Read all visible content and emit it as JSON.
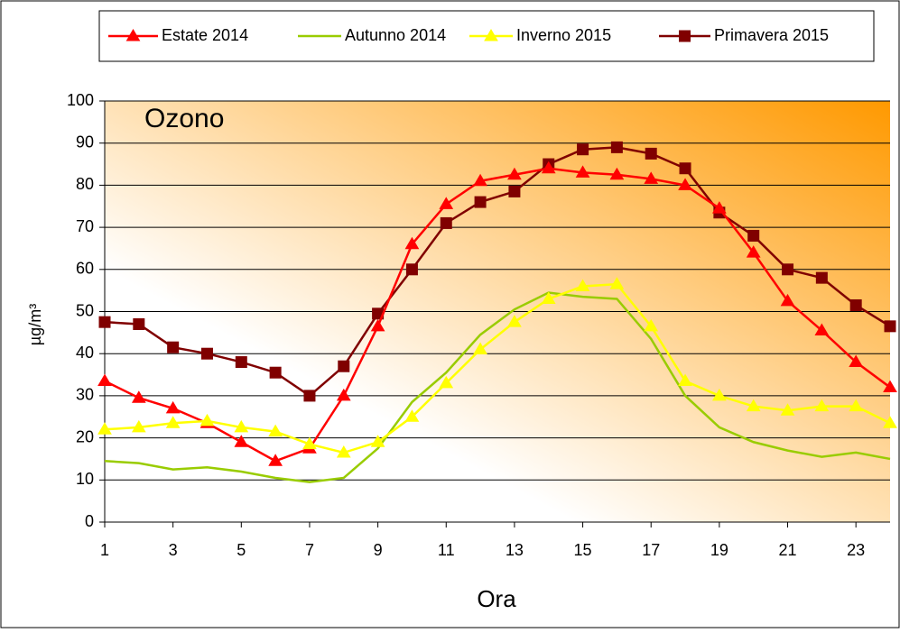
{
  "chart_data": {
    "type": "line",
    "title": "Ozono",
    "x_label": "Ora",
    "y_label": "µg/m³",
    "x": [
      1,
      2,
      3,
      4,
      5,
      6,
      7,
      8,
      9,
      10,
      11,
      12,
      13,
      14,
      15,
      16,
      17,
      18,
      19,
      20,
      21,
      22,
      23,
      24
    ],
    "xlim": [
      1,
      24
    ],
    "xticks": [
      1,
      3,
      5,
      7,
      9,
      11,
      13,
      15,
      17,
      19,
      21,
      23
    ],
    "ylim": [
      0,
      100
    ],
    "yticks": [
      0,
      10,
      20,
      30,
      40,
      50,
      60,
      70,
      80,
      90,
      100
    ],
    "grid": true,
    "series": [
      {
        "name": "Estate 2014",
        "color": "#ff0000",
        "marker": "triangle",
        "values": [
          33.5,
          29.5,
          27,
          23.5,
          19,
          14.5,
          17.5,
          30,
          46.5,
          66,
          75.5,
          81,
          82.5,
          84,
          83,
          82.5,
          81.5,
          80,
          74.5,
          64,
          52.5,
          45.5,
          38,
          32
        ]
      },
      {
        "name": "Autunno 2014",
        "color": "#99cc00",
        "marker": "none",
        "values": [
          14.5,
          14,
          12.5,
          13,
          12,
          10.5,
          9.5,
          10.5,
          17.5,
          28.5,
          35.5,
          44.5,
          50.5,
          54.5,
          53.5,
          53,
          43.5,
          30,
          22.5,
          19,
          17,
          15.5,
          16.5,
          15
        ]
      },
      {
        "name": "Inverno 2015",
        "color": "#ffff00",
        "marker": "triangle",
        "values": [
          22,
          22.5,
          23.5,
          24,
          22.5,
          21.5,
          18.5,
          16.5,
          19,
          25,
          33,
          41,
          47.5,
          53,
          56,
          56.5,
          46.5,
          33.5,
          30,
          27.5,
          26.5,
          27.5,
          27.5,
          23.5
        ]
      },
      {
        "name": "Primavera 2015",
        "color": "#800000",
        "marker": "square",
        "values": [
          47.5,
          47,
          41.5,
          40,
          38,
          35.5,
          30,
          37,
          49.5,
          60,
          71,
          76,
          78.5,
          85,
          88.5,
          89,
          87.5,
          84,
          73.5,
          68,
          60,
          58,
          51.5,
          46.5
        ]
      }
    ]
  }
}
